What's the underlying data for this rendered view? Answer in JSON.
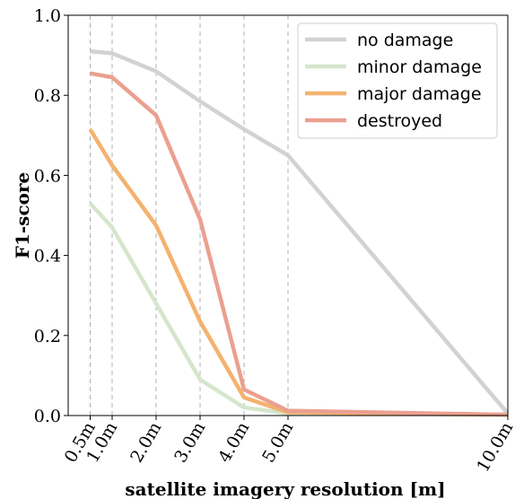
{
  "chart_data": {
    "type": "line",
    "title": "",
    "xlabel": "satellite imagery resolution [m]",
    "ylabel": "F1-score",
    "x": [
      0.5,
      1.0,
      2.0,
      3.0,
      4.0,
      5.0,
      10.0
    ],
    "x_tick_labels": [
      "0.5m",
      "1.0m",
      "2.0m",
      "3.0m",
      "4.0m",
      "5.0m",
      "10.0m"
    ],
    "xlim": [
      0.0,
      10.0
    ],
    "ylim": [
      0.0,
      1.0
    ],
    "y_ticks": [
      0.0,
      0.2,
      0.4,
      0.6,
      0.8,
      1.0
    ],
    "y_tick_labels": [
      "0.0",
      "0.2",
      "0.4",
      "0.6",
      "0.8",
      "1.0"
    ],
    "grid": "vertical dashed lines at x ticks",
    "legend_position": "top-right",
    "series": [
      {
        "name": "no damage",
        "color": "#d2d2d4",
        "values": [
          0.91,
          0.905,
          0.86,
          0.785,
          0.715,
          0.65,
          0.005
        ]
      },
      {
        "name": "minor damage",
        "color": "#d5e6cc",
        "values": [
          0.53,
          0.47,
          0.28,
          0.09,
          0.02,
          0.005,
          0.002
        ]
      },
      {
        "name": "major damage",
        "color": "#f4b26e",
        "values": [
          0.715,
          0.625,
          0.475,
          0.235,
          0.045,
          0.008,
          0.002
        ]
      },
      {
        "name": "destroyed",
        "color": "#eba090",
        "values": [
          0.855,
          0.845,
          0.75,
          0.49,
          0.065,
          0.012,
          0.002
        ]
      }
    ]
  }
}
